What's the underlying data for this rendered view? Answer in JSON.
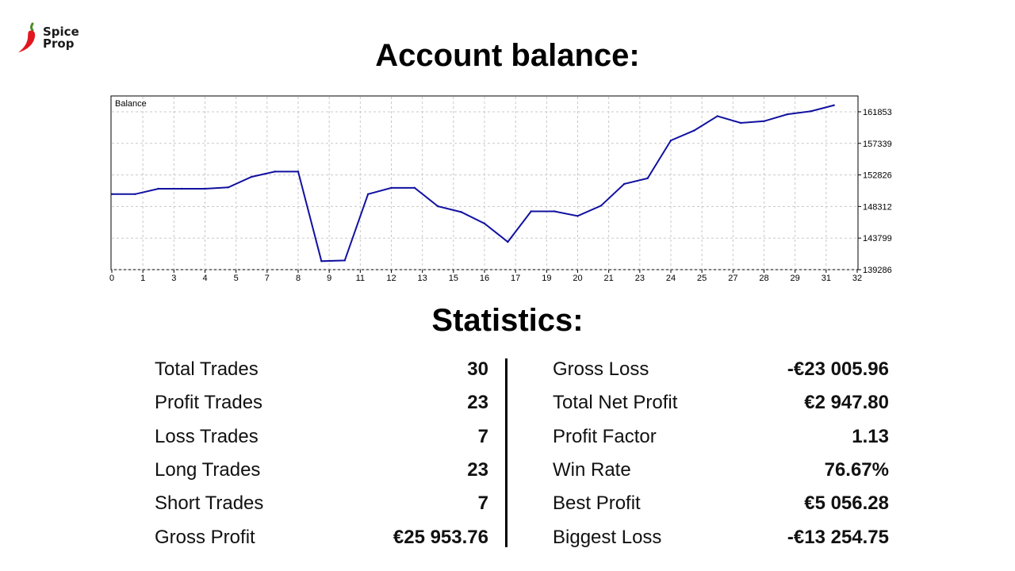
{
  "brand": {
    "line1": "Spice",
    "line2": "Prop",
    "icon": "chili-pepper-icon",
    "color": "#e1161f"
  },
  "headings": {
    "balance": "Account balance:",
    "statistics": "Statistics:"
  },
  "chart_data": {
    "type": "line",
    "title": "Balance",
    "xlim": [
      0,
      32
    ],
    "ylim": [
      139286,
      164000
    ],
    "grid": true,
    "line_color": "#1111a0",
    "x_ticks": [
      "0",
      "1",
      "3",
      "4",
      "5",
      "7",
      "8",
      "9",
      "11",
      "12",
      "13",
      "15",
      "16",
      "17",
      "19",
      "20",
      "21",
      "23",
      "24",
      "25",
      "27",
      "28",
      "29",
      "31",
      "32"
    ],
    "y_ticks": [
      161853,
      157339,
      152826,
      148312,
      143799,
      139286
    ],
    "x": [
      0,
      1,
      2,
      3,
      4,
      5,
      6,
      7,
      8,
      9,
      10,
      11,
      12,
      13,
      14,
      15,
      16,
      17,
      18,
      19,
      20,
      21,
      22,
      23,
      24,
      25,
      26,
      27,
      28,
      29,
      30,
      31
    ],
    "series": [
      {
        "values": [
          150080,
          150080,
          150850,
          150850,
          150850,
          151050,
          152550,
          153300,
          153300,
          140500,
          140600,
          150080,
          150980,
          150980,
          148340,
          147520,
          145880,
          143250,
          147620,
          147620,
          146960,
          148420,
          151540,
          152340,
          157750,
          159170,
          161230,
          160260,
          160510,
          161490,
          161920,
          162780
        ]
      }
    ]
  },
  "stats_left": [
    {
      "label": "Total Trades",
      "value": "30"
    },
    {
      "label": "Profit Trades",
      "value": "23"
    },
    {
      "label": "Loss Trades",
      "value": "7"
    },
    {
      "label": "Long Trades",
      "value": "23"
    },
    {
      "label": "Short Trades",
      "value": "7"
    },
    {
      "label": "Gross Profit",
      "value": "€25 953.76"
    }
  ],
  "stats_right": [
    {
      "label": "Gross Loss",
      "value": "-€23 005.96"
    },
    {
      "label": "Total Net Profit",
      "value": "€2 947.80"
    },
    {
      "label": "Profit Factor",
      "value": "1.13"
    },
    {
      "label": "Win Rate",
      "value": "76.67%"
    },
    {
      "label": "Best Profit",
      "value": "€5 056.28"
    },
    {
      "label": "Biggest Loss",
      "value": "-€13 254.75"
    }
  ]
}
